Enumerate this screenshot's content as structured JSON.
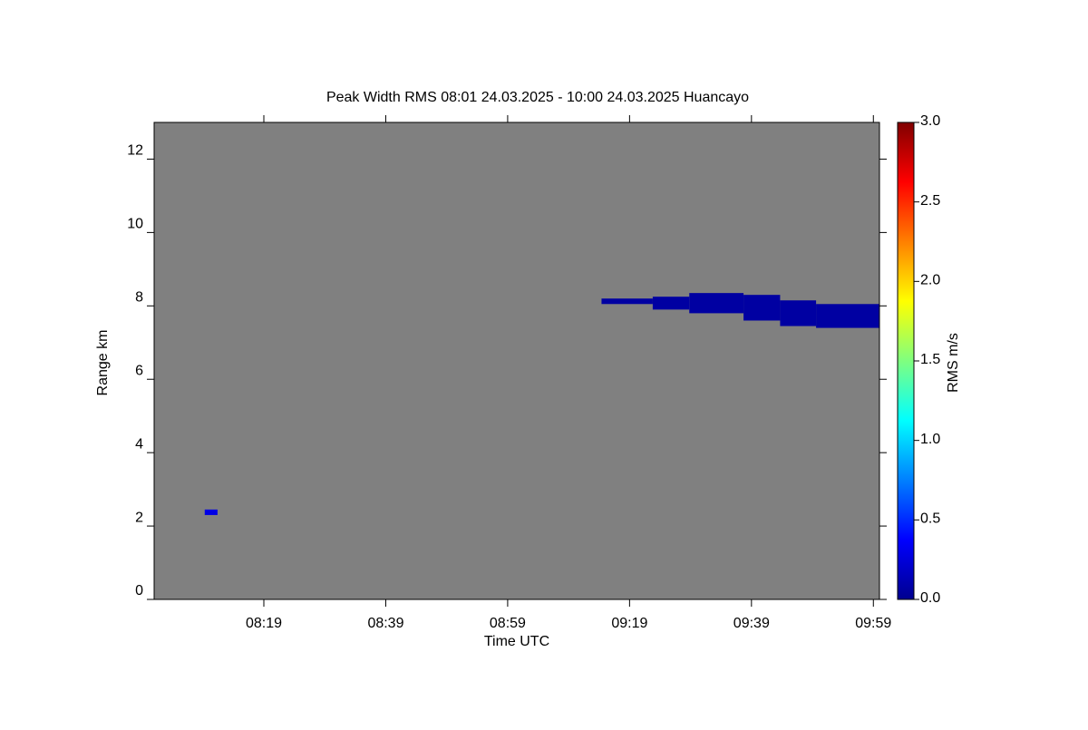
{
  "chart_data": {
    "type": "heatmap",
    "title": "Peak Width RMS   08:01 24.03.2025 - 10:00 24.03.2025 Huancayo",
    "x_label": "Time UTC",
    "y_label": "Range km",
    "colorbar_label": "RMS m/s",
    "xlim": [
      481,
      600
    ],
    "xticks": [
      {
        "value": 499,
        "label": "08:19"
      },
      {
        "value": 519,
        "label": "08:39"
      },
      {
        "value": 539,
        "label": "08:59"
      },
      {
        "value": 559,
        "label": "09:19"
      },
      {
        "value": 579,
        "label": "09:39"
      },
      {
        "value": 599,
        "label": "09:59"
      }
    ],
    "ylim": [
      0,
      13
    ],
    "yticks": [
      0,
      2,
      4,
      6,
      8,
      10,
      12
    ],
    "clim": [
      0,
      3
    ],
    "cticks": [
      {
        "value": 0,
        "label": "0.0"
      },
      {
        "value": 0.5,
        "label": "0.5"
      },
      {
        "value": 1,
        "label": "1.0"
      },
      {
        "value": 1.5,
        "label": "1.5"
      },
      {
        "value": 2,
        "label": "2.0"
      },
      {
        "value": 2.5,
        "label": "2.5"
      },
      {
        "value": 3,
        "label": "3.0"
      }
    ],
    "background": "#808080",
    "patches": [
      {
        "x": [
          489.3,
          491.4
        ],
        "y": [
          2.3,
          2.45
        ],
        "value": 0.3
      },
      {
        "x": [
          554.4,
          562.8
        ],
        "y": [
          8.05,
          8.2
        ],
        "value": 0.1
      },
      {
        "x": [
          562.8,
          568.8
        ],
        "y": [
          7.9,
          8.25
        ],
        "value": 0.1
      },
      {
        "x": [
          568.8,
          577.7
        ],
        "y": [
          7.8,
          8.35
        ],
        "value": 0.1
      },
      {
        "x": [
          577.7,
          583.7
        ],
        "y": [
          7.6,
          8.3
        ],
        "value": 0.1
      },
      {
        "x": [
          583.7,
          589.6
        ],
        "y": [
          7.45,
          8.15
        ],
        "value": 0.1
      },
      {
        "x": [
          589.6,
          600
        ],
        "y": [
          7.4,
          8.05
        ],
        "value": 0.1
      }
    ]
  }
}
